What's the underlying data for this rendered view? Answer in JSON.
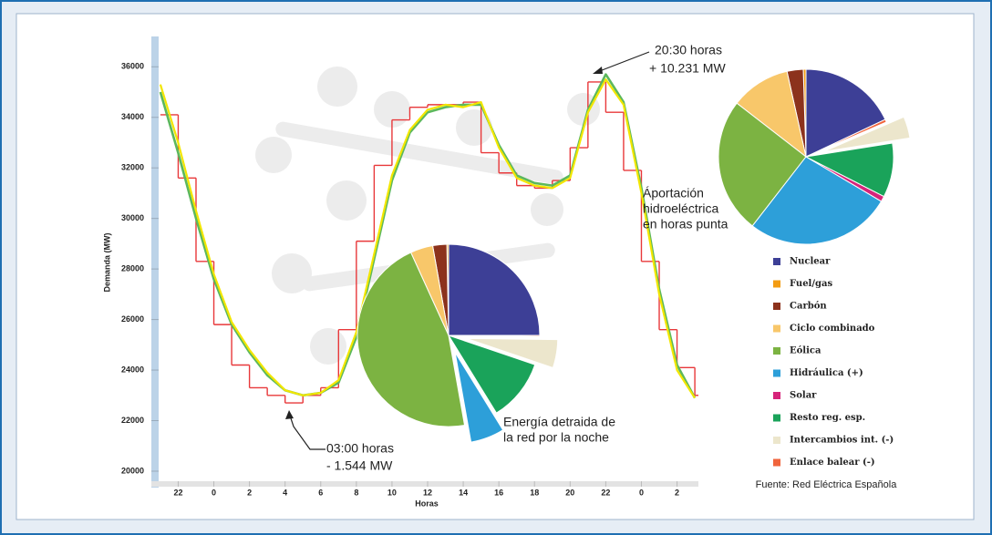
{
  "chart_data": [
    {
      "type": "line",
      "xlabel": "Horas",
      "ylabel": "Demanda (MW)",
      "x": [
        21,
        22,
        23,
        24,
        25,
        26,
        27,
        28,
        29,
        30,
        31,
        32,
        33,
        34,
        35,
        36,
        37,
        38,
        39,
        40,
        41,
        42,
        43,
        44,
        45,
        46,
        47,
        48,
        49,
        50,
        51
      ],
      "series": [
        {
          "color": "#e8383a",
          "style": "step",
          "values": [
            34100,
            31600,
            28300,
            25800,
            24200,
            23300,
            23000,
            22700,
            23000,
            23300,
            25600,
            29100,
            32100,
            33900,
            34400,
            34500,
            34500,
            34600,
            32600,
            31800,
            31300,
            31200,
            31500,
            32800,
            35400,
            34200,
            31900,
            28300,
            25600,
            24100,
            23000
          ]
        },
        {
          "color": "#5cb85c",
          "style": "line",
          "values": [
            35000,
            32600,
            30000,
            27600,
            25800,
            24700,
            23800,
            23200,
            23000,
            23100,
            23500,
            25300,
            28400,
            31500,
            33400,
            34200,
            34400,
            34500,
            34500,
            32900,
            31700,
            31400,
            31300,
            31700,
            34300,
            35700,
            34600,
            31200,
            27200,
            24200,
            22900
          ]
        },
        {
          "color": "#f2e600",
          "style": "line",
          "values": [
            35300,
            33000,
            30300,
            27800,
            25900,
            24800,
            23900,
            23200,
            23000,
            23100,
            23600,
            25500,
            28600,
            31700,
            33500,
            34300,
            34500,
            34400,
            34600,
            32800,
            31600,
            31300,
            31200,
            31600,
            34200,
            35500,
            34500,
            31000,
            27000,
            24000,
            22900
          ]
        }
      ],
      "xlim": [
        20.8,
        51.2
      ],
      "ylim": [
        19350,
        37200
      ],
      "xticks": [
        22,
        {
          "value": 24,
          "label": "0"
        },
        {
          "value": 26,
          "label": "2"
        },
        {
          "value": 28,
          "label": "4"
        },
        {
          "value": 30,
          "label": "6"
        },
        {
          "value": 32,
          "label": "8"
        },
        {
          "value": 34,
          "label": "10"
        },
        {
          "value": 36,
          "label": "12"
        },
        {
          "value": 38,
          "label": "14"
        },
        {
          "value": 40,
          "label": "16"
        },
        {
          "value": 42,
          "label": "18"
        },
        {
          "value": 44,
          "label": "20"
        },
        {
          "value": 46,
          "label": "22"
        },
        {
          "value": 48,
          "label": "0"
        },
        {
          "value": 50,
          "label": "2"
        }
      ],
      "yticks": [
        20000,
        22000,
        24000,
        26000,
        28000,
        30000,
        32000,
        34000,
        36000
      ],
      "annotations": [
        {
          "lines": [
            "20:30 horas",
            "+ 10.231 MW"
          ]
        },
        {
          "lines": [
            "Áportación",
            "hidroeléctrica",
            "en horas punta"
          ]
        },
        {
          "lines": [
            "Energía detraida de",
            "la red por la noche"
          ]
        },
        {
          "lines": [
            "03:00 horas",
            "- 1.544 MW"
          ]
        }
      ],
      "source": "Fuente: Red Eléctrica Española"
    },
    {
      "type": "pie",
      "categories": [
        "Nuclear",
        "Fuel/gas",
        "Carbón",
        "Ciclo combinado",
        "Eólica",
        "Hidráulica (+)",
        "Solar",
        "Resto reg. esp.",
        "Intercambios int. (-)",
        "Enlace balear (-)"
      ],
      "colors": [
        "#3d3f96",
        "#f39c12",
        "#8c321c",
        "#f8c76a",
        "#7cb342",
        "#2d9fd9",
        "#d6247a",
        "#1aa35a",
        "#ece6cc",
        "#f0643c"
      ],
      "values": [
        18,
        0.5,
        3,
        11,
        25,
        27,
        1,
        10,
        4,
        0.5
      ],
      "explode": [
        8
      ]
    },
    {
      "type": "pie",
      "values": [
        25,
        0.3,
        2.5,
        4,
        46,
        6,
        0,
        11,
        5,
        0.2
      ],
      "explode": [
        5,
        8
      ]
    }
  ]
}
